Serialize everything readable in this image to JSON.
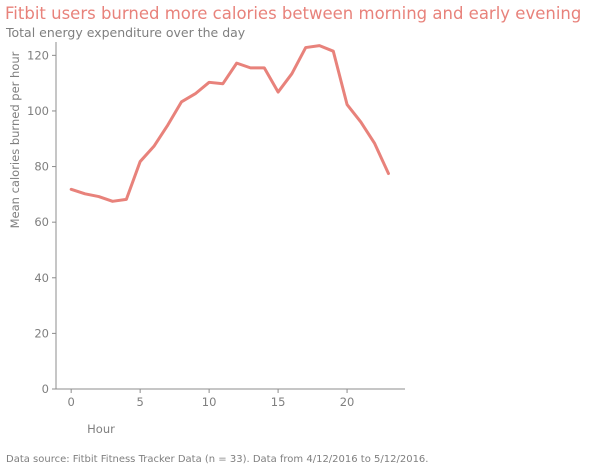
{
  "caption": "Data source: Fitbit Fitness Tracker Data (n = 33). Data from 4/12/2016 to 5/12/2016.",
  "chart_data": {
    "type": "line",
    "title": "Fitbit users burned more calories between morning and early evening",
    "subtitle": "Total energy expenditure over the day",
    "xlabel": "Hour",
    "ylabel": "Mean calories burned per hour",
    "x": [
      0,
      1,
      2,
      3,
      4,
      5,
      6,
      7,
      8,
      9,
      10,
      11,
      12,
      13,
      14,
      15,
      16,
      17,
      18,
      19,
      20,
      21,
      22,
      23
    ],
    "series": [
      {
        "values": [
          71.8,
          70.2,
          69.2,
          67.5,
          68.2,
          81.8,
          87.3,
          94.9,
          103.3,
          106.2,
          110.3,
          109.8,
          117.2,
          115.5,
          115.5,
          106.8,
          113.4,
          122.8,
          123.5,
          121.5,
          102.3,
          96.0,
          88.3,
          77.5
        ],
        "color": "#e8827b"
      }
    ],
    "xlim": [
      -1.1,
      24.2
    ],
    "ylim": [
      0,
      124.8
    ],
    "xticks": [
      0,
      5,
      10,
      15,
      20
    ],
    "yticks": [
      0,
      20,
      40,
      60,
      80,
      100,
      120
    ],
    "grid": false,
    "legend": "none"
  }
}
